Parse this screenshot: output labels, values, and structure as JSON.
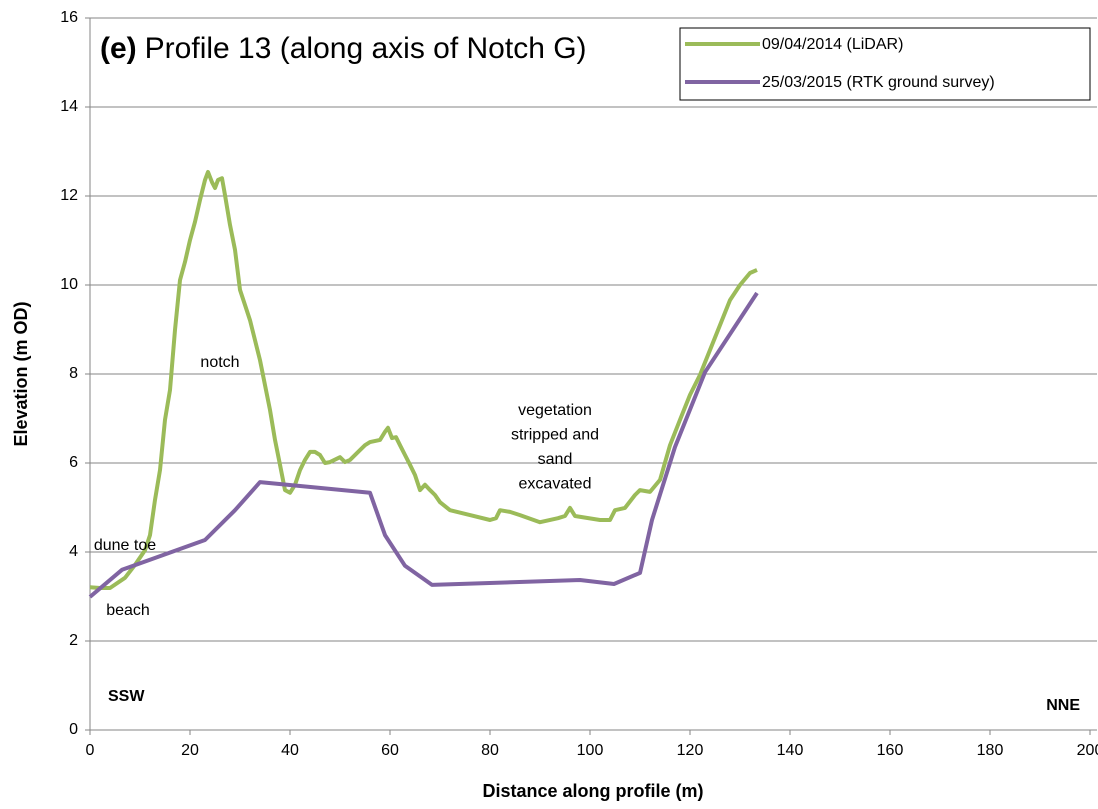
{
  "chart_data": {
    "type": "line",
    "title_label": "(e)",
    "title": "Profile 13 (along axis of Notch G)",
    "x_label": "Distance along profile (m)",
    "y_label": "Elevation (m OD)",
    "xlim": [
      0,
      201.4
    ],
    "xticks": [
      0,
      20,
      40,
      60,
      80,
      100,
      120,
      140,
      160,
      180,
      200
    ],
    "ylim": [
      0,
      16
    ],
    "yticks": [
      0,
      2,
      4,
      6,
      8,
      10,
      12,
      14,
      16
    ],
    "grid": true,
    "legend": "upper right",
    "series": [
      {
        "name": "09/04/2014 (LiDAR)",
        "color": "#9bbb59",
        "x": [
          0,
          2,
          4,
          7,
          9,
          11,
          12,
          13,
          14,
          15,
          16,
          17,
          18,
          19,
          20,
          21,
          22,
          23,
          23.6,
          24.4,
          25,
          25.6,
          26.4,
          27,
          28,
          29,
          30,
          31,
          32,
          33,
          34,
          35,
          36,
          37,
          38,
          39,
          40,
          41,
          42,
          43,
          44,
          45,
          46,
          47,
          48,
          50,
          51,
          52,
          54,
          55,
          56,
          58,
          59,
          59.6,
          60.4,
          61.2,
          62,
          63,
          64,
          65,
          66,
          67,
          68,
          69,
          70,
          72,
          76,
          80,
          81.2,
          82,
          84,
          86,
          90,
          93.6,
          95,
          96,
          97,
          102,
          104,
          105,
          107,
          109,
          110,
          112,
          114,
          116,
          118,
          120,
          122,
          124,
          126,
          128,
          130,
          132,
          133.4
        ],
        "values": [
          3.21,
          3.19,
          3.19,
          3.42,
          3.71,
          4.04,
          4.38,
          5.17,
          5.84,
          6.97,
          7.64,
          8.99,
          10.11,
          10.52,
          11.01,
          11.42,
          11.91,
          12.36,
          12.54,
          12.31,
          12.18,
          12.36,
          12.4,
          12.02,
          11.35,
          10.79,
          9.89,
          9.55,
          9.21,
          8.76,
          8.31,
          7.75,
          7.19,
          6.52,
          5.96,
          5.39,
          5.33,
          5.51,
          5.84,
          6.07,
          6.25,
          6.25,
          6.18,
          6.0,
          6.02,
          6.13,
          6.02,
          6.07,
          6.29,
          6.4,
          6.47,
          6.52,
          6.7,
          6.79,
          6.56,
          6.58,
          6.4,
          6.18,
          5.96,
          5.73,
          5.39,
          5.51,
          5.39,
          5.28,
          5.12,
          4.94,
          4.83,
          4.72,
          4.76,
          4.94,
          4.9,
          4.83,
          4.67,
          4.76,
          4.81,
          4.99,
          4.81,
          4.72,
          4.72,
          4.94,
          4.99,
          5.28,
          5.39,
          5.35,
          5.62,
          6.4,
          6.97,
          7.53,
          7.98,
          8.54,
          9.1,
          9.66,
          10.0,
          10.27,
          10.34
        ]
      },
      {
        "name": "25/03/2015 (RTK ground survey)",
        "color": "#8064a2",
        "x": [
          0,
          6.4,
          23,
          29,
          34,
          56,
          59,
          63,
          68.4,
          98,
          104.8,
          110,
          112.4,
          117,
          123,
          133.4
        ],
        "values": [
          2.99,
          3.6,
          4.27,
          4.94,
          5.57,
          5.33,
          4.38,
          3.69,
          3.26,
          3.37,
          3.28,
          3.53,
          4.72,
          6.36,
          8.04,
          9.82
        ]
      }
    ],
    "annotations": [
      {
        "lines": [
          "notch"
        ]
      },
      {
        "lines": [
          "vegetation",
          "stripped and",
          "sand",
          "excavated"
        ]
      },
      {
        "lines": [
          "dune toe"
        ]
      },
      {
        "lines": [
          "beach"
        ]
      },
      {
        "lines": [
          "SSW"
        ]
      },
      {
        "lines": [
          "NNE"
        ]
      }
    ]
  }
}
